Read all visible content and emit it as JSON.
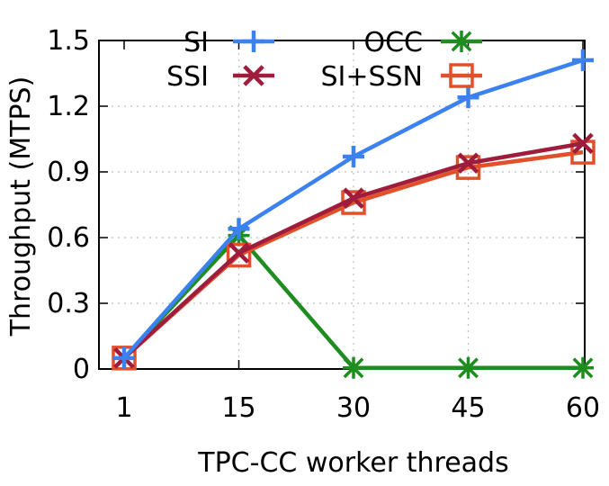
{
  "chart_data": {
    "type": "line",
    "title": "",
    "xlabel": "TPC-CC worker threads",
    "ylabel": "Throughput (MTPS)",
    "x": [
      1,
      15,
      30,
      45,
      60
    ],
    "x_tick_labels": [
      "1",
      "15",
      "30",
      "45",
      "60"
    ],
    "ylim": [
      0,
      1.5
    ],
    "y_ticks": [
      0,
      0.3,
      0.6,
      0.9,
      1.2,
      1.5
    ],
    "y_tick_labels": [
      "0",
      "0.3",
      "0.6",
      "0.9",
      "1.2",
      "1.5"
    ],
    "grid": true,
    "legend_position": "top",
    "series": [
      {
        "name": "SI",
        "values": [
          0.05,
          0.64,
          0.97,
          1.24,
          1.41
        ],
        "color": "#3b82f0",
        "marker": "plus"
      },
      {
        "name": "SSI",
        "values": [
          0.05,
          0.53,
          0.78,
          0.94,
          1.03
        ],
        "color": "#a01c3c",
        "marker": "cross"
      },
      {
        "name": "OCC",
        "values": [
          0.05,
          0.61,
          0.005,
          0.005,
          0.005
        ],
        "color": "#1e8c1e",
        "marker": "asterisk"
      },
      {
        "name": "SI+SSN",
        "values": [
          0.05,
          0.52,
          0.76,
          0.92,
          0.99
        ],
        "color": "#e0502a",
        "marker": "square"
      }
    ]
  }
}
